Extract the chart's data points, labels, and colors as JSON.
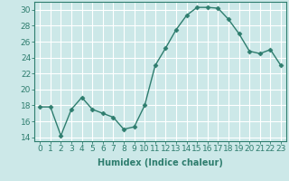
{
  "x": [
    0,
    1,
    2,
    3,
    4,
    5,
    6,
    7,
    8,
    9,
    10,
    11,
    12,
    13,
    14,
    15,
    16,
    17,
    18,
    19,
    20,
    21,
    22,
    23
  ],
  "y": [
    17.8,
    17.8,
    14.2,
    17.5,
    19.0,
    17.5,
    17.0,
    16.5,
    15.0,
    15.3,
    18.0,
    23.0,
    25.2,
    27.5,
    29.3,
    30.3,
    30.3,
    30.2,
    28.8,
    27.0,
    24.8,
    24.5,
    25.0,
    23.0
  ],
  "line_color": "#2e7d6e",
  "marker": "D",
  "marker_size": 2.5,
  "line_width": 1.0,
  "bg_color": "#cce8e8",
  "grid_color": "#ffffff",
  "xlabel": "Humidex (Indice chaleur)",
  "xlabel_fontsize": 7,
  "tick_fontsize": 6.5,
  "ylim": [
    13.5,
    31.0
  ],
  "yticks": [
    14,
    16,
    18,
    20,
    22,
    24,
    26,
    28,
    30
  ],
  "xticks": [
    0,
    1,
    2,
    3,
    4,
    5,
    6,
    7,
    8,
    9,
    10,
    11,
    12,
    13,
    14,
    15,
    16,
    17,
    18,
    19,
    20,
    21,
    22,
    23
  ],
  "xlim": [
    -0.5,
    23.5
  ]
}
